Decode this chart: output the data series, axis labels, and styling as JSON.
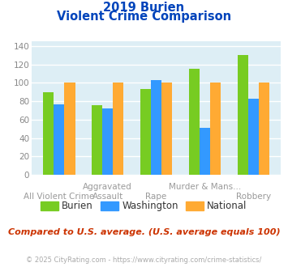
{
  "title_line1": "2019 Burien",
  "title_line2": "Violent Crime Comparison",
  "categories": [
    "All Violent Crime",
    "Aggravated Assault",
    "Rape",
    "Murder & Mans...",
    "Robbery"
  ],
  "series": {
    "Burien": [
      90,
      76,
      93,
      115,
      130
    ],
    "Washington": [
      77,
      72,
      103,
      51,
      83
    ],
    "National": [
      100,
      100,
      100,
      100,
      100
    ]
  },
  "colors": {
    "Burien": "#77cc22",
    "Washington": "#3399ff",
    "National": "#ffaa33"
  },
  "ylim": [
    0,
    145
  ],
  "yticks": [
    0,
    20,
    40,
    60,
    80,
    100,
    120,
    140
  ],
  "title_color": "#0044bb",
  "title_fontsize": 10.5,
  "plot_bg_color": "#ddeef5",
  "grid_color": "#ffffff",
  "tick_label_fontsize": 7.5,
  "legend_fontsize": 8.5,
  "footer_text": "Compared to U.S. average. (U.S. average equals 100)",
  "footer_color": "#cc3300",
  "footer_fontsize": 8.0,
  "copyright_text": "© 2025 CityRating.com - https://www.cityrating.com/crime-statistics/",
  "copyright_color": "#aaaaaa",
  "copyright_fontsize": 6.0,
  "bar_width": 0.22
}
